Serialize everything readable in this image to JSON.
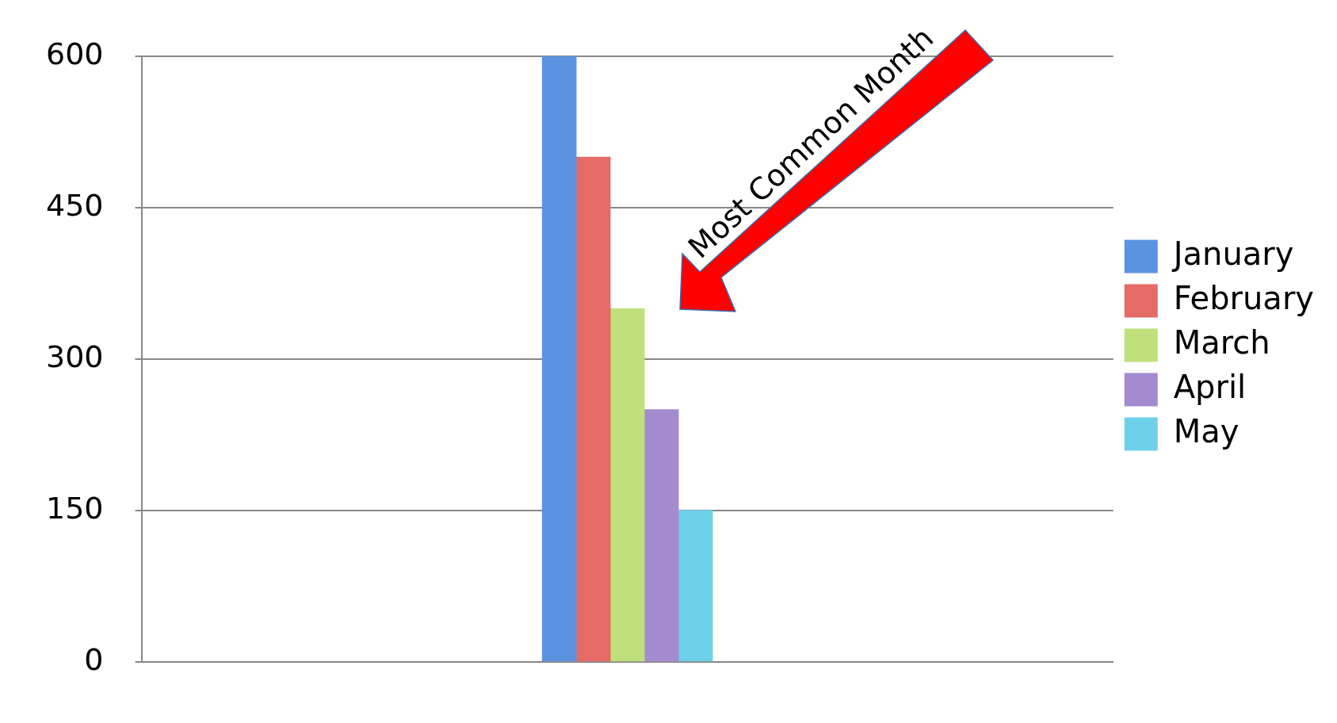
{
  "chart_data": {
    "type": "bar",
    "categories": [
      null
    ],
    "series": [
      {
        "name": "January",
        "color": "#5b93e0",
        "values": [
          600
        ]
      },
      {
        "name": "February",
        "color": "#e56b66",
        "values": [
          500
        ]
      },
      {
        "name": "March",
        "color": "#bfe07a",
        "values": [
          350
        ]
      },
      {
        "name": "April",
        "color": "#a48bd0",
        "values": [
          250
        ]
      },
      {
        "name": "May",
        "color": "#6fd0ea",
        "values": [
          150
        ]
      }
    ],
    "ylim": [
      0,
      600
    ],
    "yticks": [
      0,
      150,
      300,
      450,
      600
    ],
    "grid": "y",
    "legend": "right",
    "annotations": [
      "Most Common Month"
    ]
  }
}
